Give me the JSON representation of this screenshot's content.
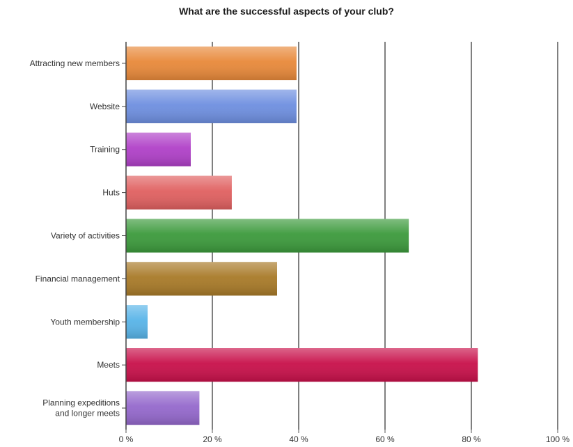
{
  "chart_data": {
    "type": "bar",
    "orientation": "horizontal",
    "title": "What are the successful aspects of your club?",
    "xlabel": "",
    "ylabel": "",
    "xlim": [
      0,
      100
    ],
    "x_ticks": [
      "0 %",
      "20 %",
      "40 %",
      "60 %",
      "80 %",
      "100 %"
    ],
    "grid": "vertical",
    "categories": [
      "Attracting new members",
      "Website",
      "Training",
      "Huts",
      "Variety of activities",
      "Financial management",
      "Youth membership",
      "Meets",
      "Planning expeditions and longer meets"
    ],
    "values": [
      39.5,
      39.5,
      15,
      24.5,
      65.5,
      35,
      5,
      81.5,
      17
    ],
    "colors": [
      "#e8893a",
      "#6e8fe0",
      "#b040c8",
      "#e06060",
      "#3c9a3c",
      "#a87a28",
      "#58b4e8",
      "#c8104a",
      "#9468cc"
    ]
  }
}
